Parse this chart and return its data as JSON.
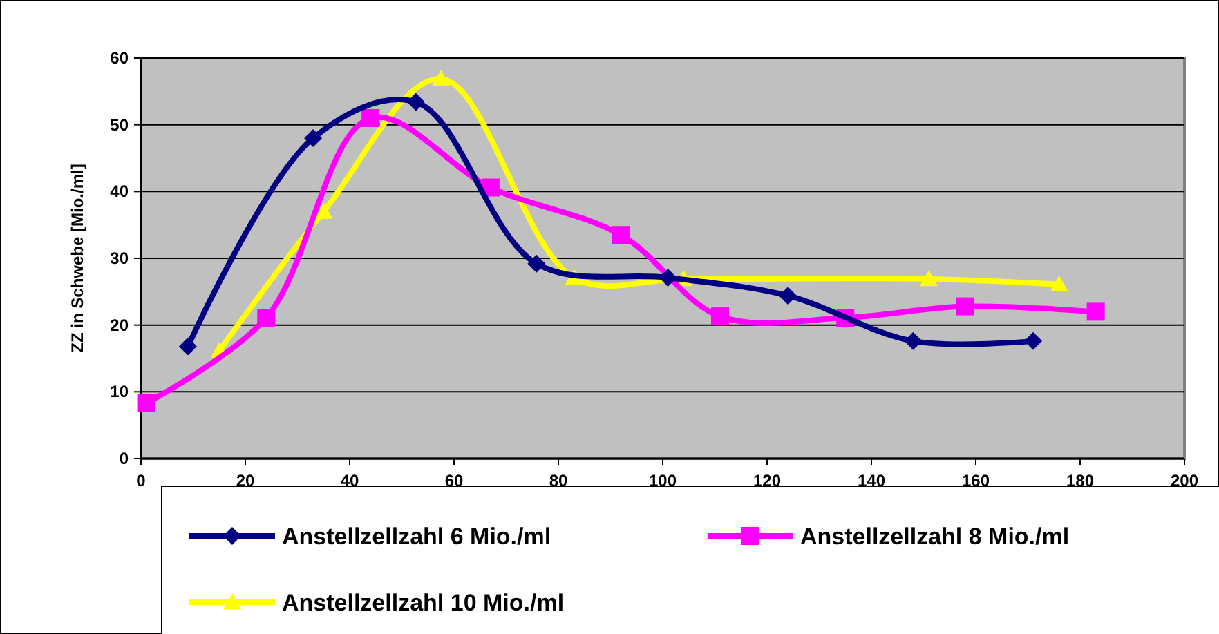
{
  "chart_data": {
    "type": "line",
    "ylabel": "ZZ in Schwebe [Mio./ml]",
    "xlim": [
      0,
      200
    ],
    "xticks": [
      0,
      20,
      40,
      60,
      80,
      100,
      120,
      140,
      160,
      180,
      200
    ],
    "ylim": [
      0,
      60
    ],
    "yticks": [
      0,
      10,
      20,
      30,
      40,
      50,
      60
    ],
    "grid": "y",
    "legend": "bottom",
    "series": [
      {
        "name": "Anstellzellzahl 6 Mio./ml",
        "color": "#000080",
        "marker": "diamond",
        "x": [
          9,
          33,
          52.7,
          75.8,
          101,
          124,
          148,
          171
        ],
        "values": [
          16.8,
          48,
          53.4,
          29.2,
          27.1,
          24.4,
          17.6,
          17.6
        ]
      },
      {
        "name": "Anstellzellzahl 8 Mio./ml",
        "color": "#ff00ff",
        "marker": "square",
        "x": [
          1,
          24,
          44,
          67,
          92,
          111,
          135,
          158,
          183
        ],
        "values": [
          8.3,
          21.1,
          51,
          40.6,
          33.5,
          21.3,
          21.1,
          22.8,
          22
        ]
      },
      {
        "name": "Anstellzellzahl 10 Mio./ml",
        "color": "#ffff00",
        "marker": "triangle",
        "x": [
          15,
          35,
          57.5,
          83,
          104,
          151,
          176
        ],
        "values": [
          16.1,
          37,
          56.9,
          27.1,
          26.9,
          26.9,
          26.1
        ]
      }
    ]
  }
}
